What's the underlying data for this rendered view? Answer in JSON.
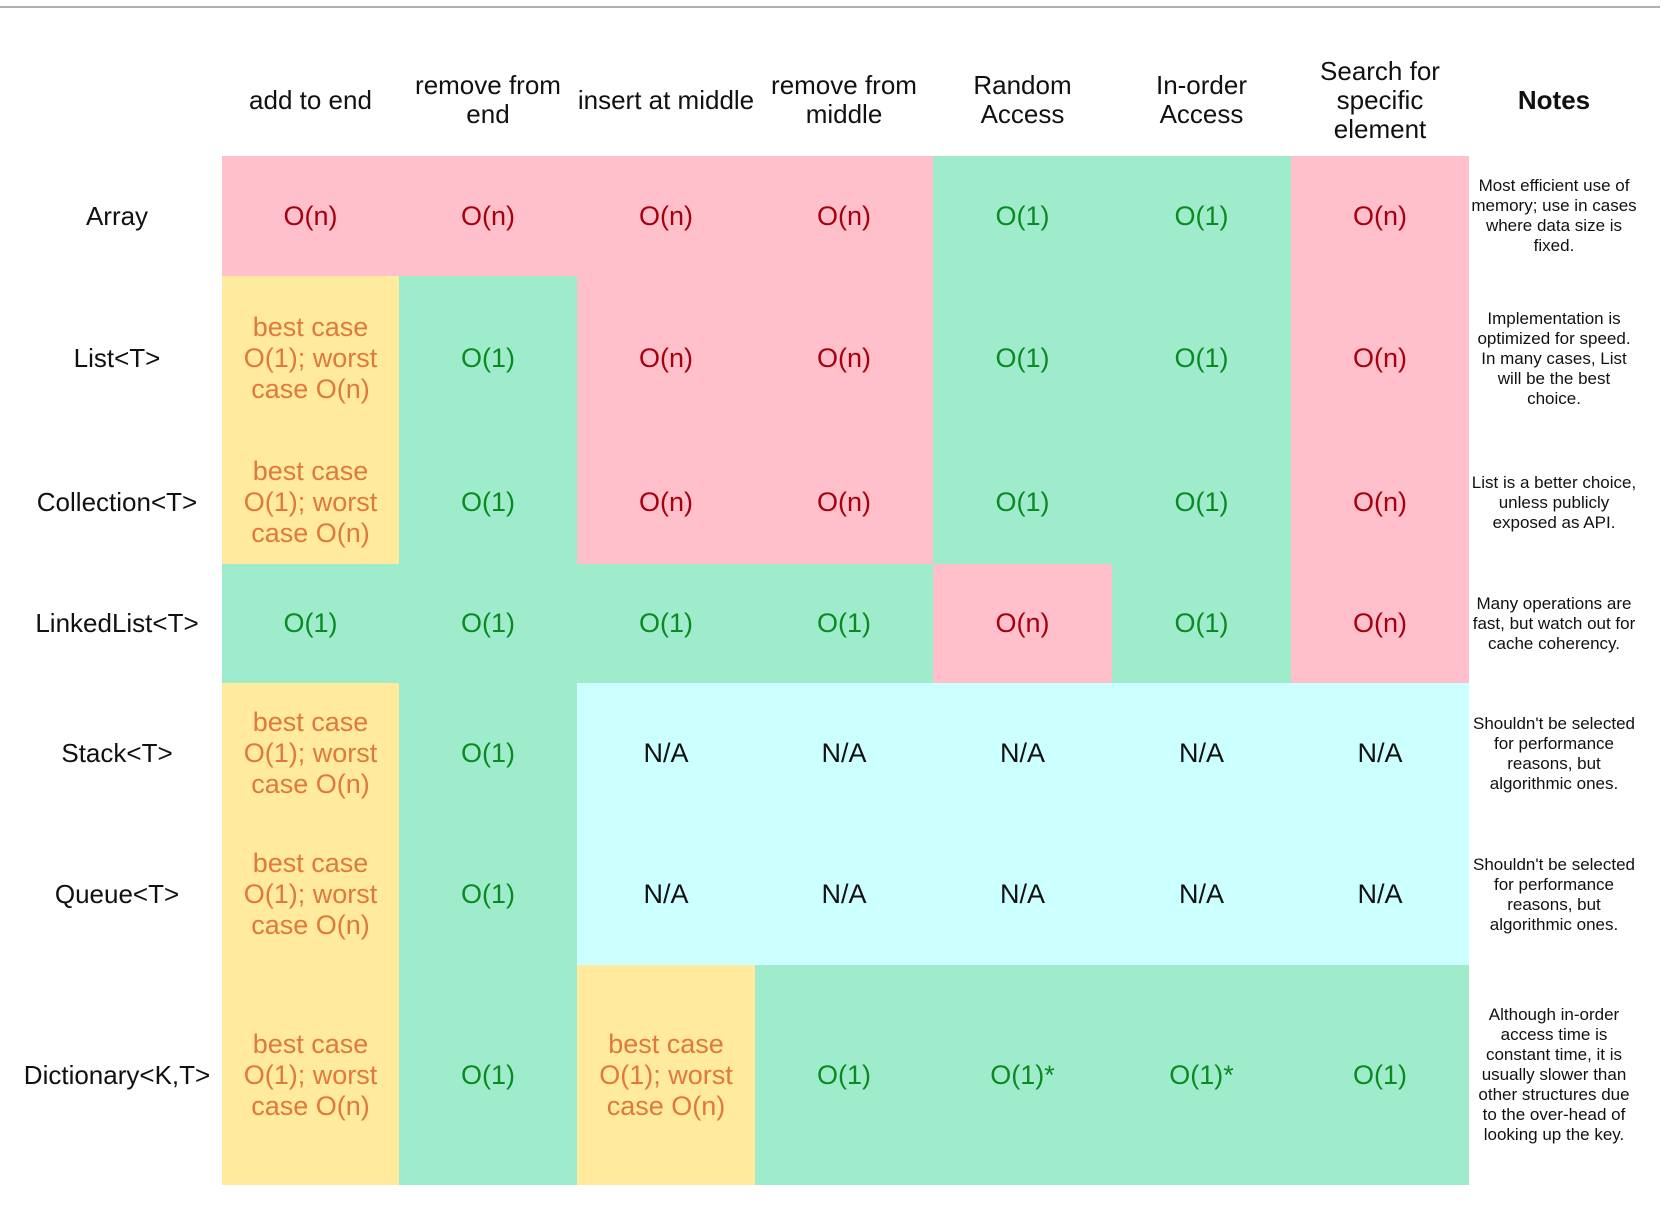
{
  "columns": [
    "",
    "add to end",
    "remove from end",
    "insert at middle",
    "remove from middle",
    "Random Access",
    "In-order Access",
    "Search for specific element",
    "Notes"
  ],
  "rows": [
    {
      "name": "Array",
      "cells": [
        {
          "text": "O(n)",
          "kind": "bad"
        },
        {
          "text": "O(n)",
          "kind": "bad"
        },
        {
          "text": "O(n)",
          "kind": "bad"
        },
        {
          "text": "O(n)",
          "kind": "bad"
        },
        {
          "text": "O(1)",
          "kind": "good"
        },
        {
          "text": "O(1)",
          "kind": "good"
        },
        {
          "text": "O(n)",
          "kind": "bad"
        }
      ],
      "note": "Most efficient use of memory; use in cases where data size is fixed."
    },
    {
      "name": "List<T>",
      "cells": [
        {
          "text": "best case O(1); worst case O(n)",
          "kind": "mix"
        },
        {
          "text": "O(1)",
          "kind": "good"
        },
        {
          "text": "O(n)",
          "kind": "bad"
        },
        {
          "text": "O(n)",
          "kind": "bad"
        },
        {
          "text": "O(1)",
          "kind": "good"
        },
        {
          "text": "O(1)",
          "kind": "good"
        },
        {
          "text": "O(n)",
          "kind": "bad"
        }
      ],
      "note": "Implementation is optimized for speed. In many cases, List will be the best choice."
    },
    {
      "name": "Collection<T>",
      "cells": [
        {
          "text": "best case O(1); worst case O(n)",
          "kind": "mix"
        },
        {
          "text": "O(1)",
          "kind": "good"
        },
        {
          "text": "O(n)",
          "kind": "bad"
        },
        {
          "text": "O(n)",
          "kind": "bad"
        },
        {
          "text": "O(1)",
          "kind": "good"
        },
        {
          "text": "O(1)",
          "kind": "good"
        },
        {
          "text": "O(n)",
          "kind": "bad"
        }
      ],
      "note": "List is a better choice, unless publicly exposed as API."
    },
    {
      "name": "LinkedList<T>",
      "cells": [
        {
          "text": "O(1)",
          "kind": "good"
        },
        {
          "text": "O(1)",
          "kind": "good"
        },
        {
          "text": "O(1)",
          "kind": "good"
        },
        {
          "text": "O(1)",
          "kind": "good"
        },
        {
          "text": "O(n)",
          "kind": "bad"
        },
        {
          "text": "O(1)",
          "kind": "good"
        },
        {
          "text": "O(n)",
          "kind": "bad"
        }
      ],
      "note": "Many operations are fast, but watch out for cache coherency."
    },
    {
      "name": "Stack<T>",
      "cells": [
        {
          "text": "best case O(1); worst case O(n)",
          "kind": "mix"
        },
        {
          "text": "O(1)",
          "kind": "good"
        },
        {
          "text": "N/A",
          "kind": "na"
        },
        {
          "text": "N/A",
          "kind": "na"
        },
        {
          "text": "N/A",
          "kind": "na"
        },
        {
          "text": "N/A",
          "kind": "na"
        },
        {
          "text": "N/A",
          "kind": "na"
        }
      ],
      "note": "Shouldn't be selected for performance reasons, but algorithmic ones."
    },
    {
      "name": "Queue<T>",
      "cells": [
        {
          "text": "best case O(1); worst case O(n)",
          "kind": "mix"
        },
        {
          "text": "O(1)",
          "kind": "good"
        },
        {
          "text": "N/A",
          "kind": "na"
        },
        {
          "text": "N/A",
          "kind": "na"
        },
        {
          "text": "N/A",
          "kind": "na"
        },
        {
          "text": "N/A",
          "kind": "na"
        },
        {
          "text": "N/A",
          "kind": "na"
        }
      ],
      "note": "Shouldn't be selected for performance reasons, but algorithmic ones."
    },
    {
      "name": "Dictionary<K,T>",
      "cells": [
        {
          "text": "best case O(1); worst case O(n)",
          "kind": "mix"
        },
        {
          "text": "O(1)",
          "kind": "good"
        },
        {
          "text": "best case O(1); worst case O(n)",
          "kind": "mix"
        },
        {
          "text": "O(1)",
          "kind": "good"
        },
        {
          "text": "O(1)*",
          "kind": "good"
        },
        {
          "text": "O(1)*",
          "kind": "good"
        },
        {
          "text": "O(1)",
          "kind": "good"
        }
      ],
      "note": "Although in-order access time is constant time, it is usually slower than other structures due to the over-head of looking up the key."
    }
  ],
  "colors": {
    "bad_bg": "#ffc0cb",
    "bad_text": "#a50010",
    "good_bg": "#9feccd",
    "good_text": "#0c8a22",
    "mix_bg": "#ffea9e",
    "mix_text": "#e07a3c",
    "na_bg": "#ccffff"
  }
}
